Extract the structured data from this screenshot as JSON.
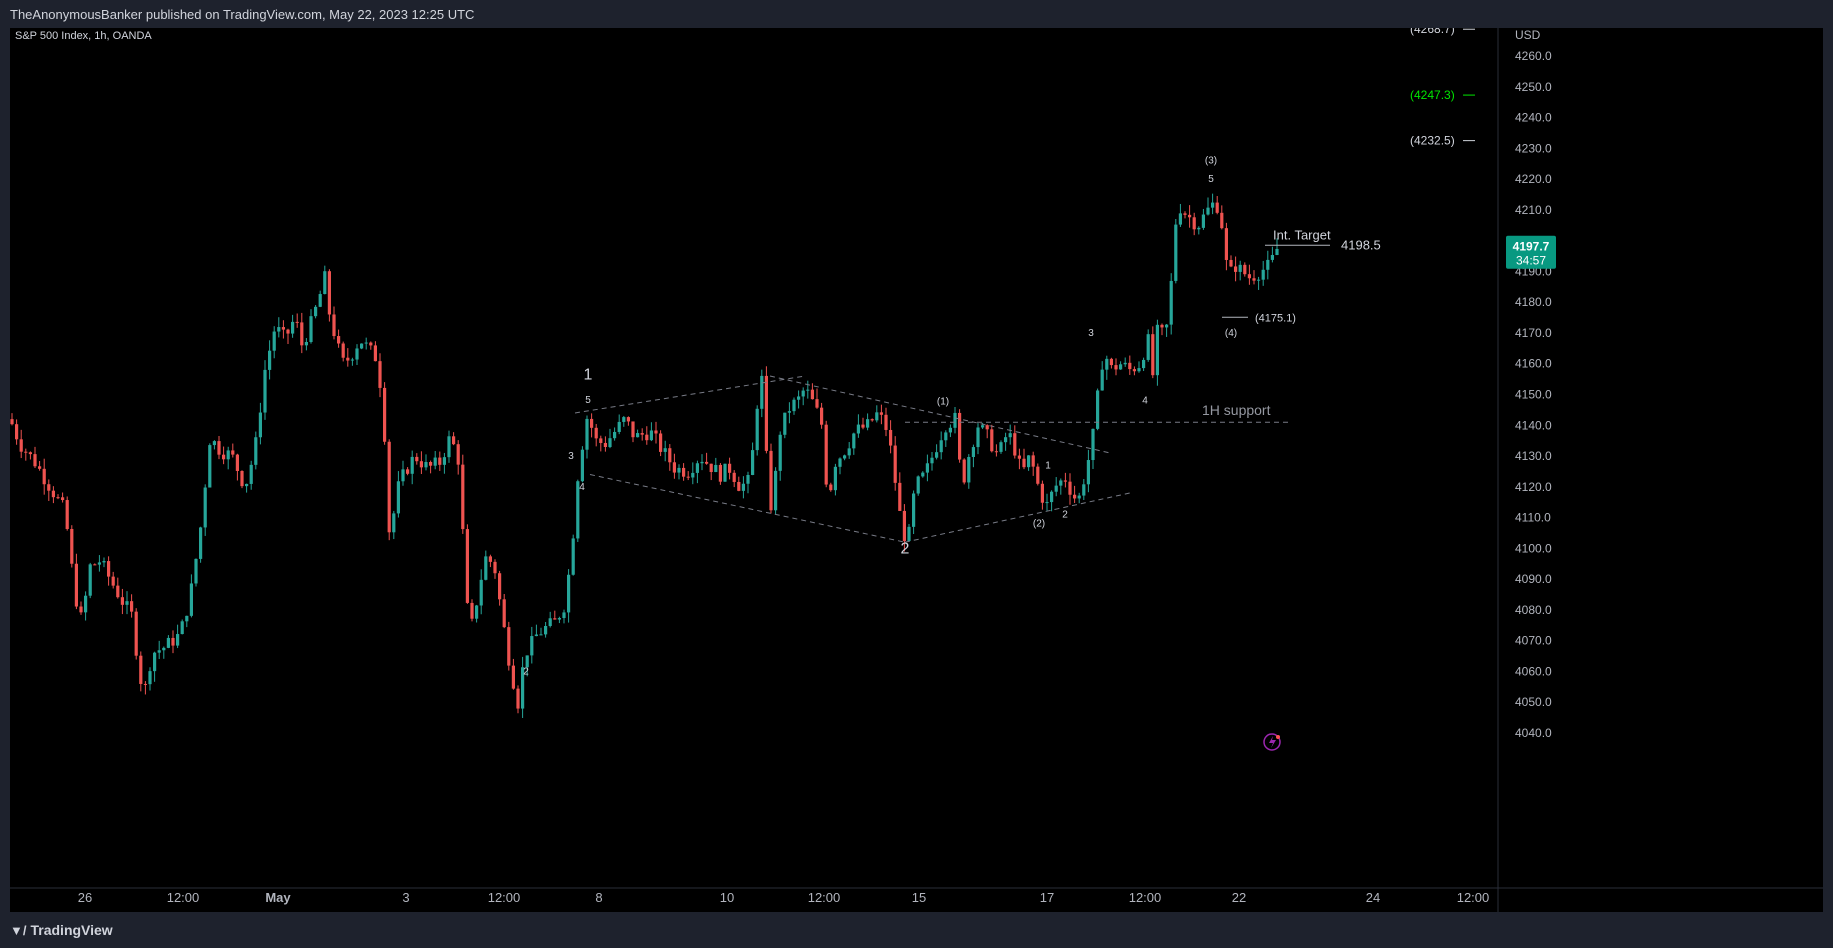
{
  "header": {
    "publisher_text": "TheAnonymousBanker published on TradingView.com, May 22, 2023 12:25 UTC"
  },
  "footer": {
    "brand": "TradingView",
    "brand_icon": "tradingview-logo-icon"
  },
  "colors": {
    "up": "#26a69a",
    "down": "#ef5350",
    "text": "#d1d4dc",
    "axis_text": "#b2b5be",
    "green_target": "#00e600",
    "last_price_bg": "#089981",
    "dashed": "#787b86"
  },
  "chart_data": {
    "type": "candlestick",
    "title": "S&P 500 Index, 1h, OANDA",
    "currency": "USD",
    "ylim": [
      4036,
      4274
    ],
    "y_ticks": [
      4260,
      4250,
      4240,
      4230,
      4220,
      4210,
      4200,
      4190,
      4180,
      4170,
      4160,
      4150,
      4140,
      4130,
      4120,
      4110,
      4100,
      4090,
      4080,
      4070,
      4060,
      4050,
      4040
    ],
    "x_tick_labels": [
      "26",
      "12:00",
      "May",
      "3",
      "12:00",
      "8",
      "10",
      "12:00",
      "15",
      "17",
      "12:00",
      "22",
      "24",
      "12:00"
    ],
    "last_price": "4197.7",
    "countdown": "34:57",
    "path": [
      [
        0,
        4142
      ],
      [
        10,
        4134
      ],
      [
        25,
        4128
      ],
      [
        40,
        4120
      ],
      [
        55,
        4112
      ],
      [
        65,
        4085
      ],
      [
        72,
        4076
      ],
      [
        80,
        4094
      ],
      [
        90,
        4096
      ],
      [
        100,
        4090
      ],
      [
        112,
        4083
      ],
      [
        122,
        4078
      ],
      [
        130,
        4058
      ],
      [
        135,
        4054
      ],
      [
        142,
        4066
      ],
      [
        155,
        4068
      ],
      [
        170,
        4072
      ],
      [
        180,
        4084
      ],
      [
        190,
        4105
      ],
      [
        200,
        4136
      ],
      [
        210,
        4132
      ],
      [
        222,
        4130
      ],
      [
        235,
        4120
      ],
      [
        245,
        4132
      ],
      [
        255,
        4158
      ],
      [
        265,
        4172
      ],
      [
        275,
        4168
      ],
      [
        285,
        4175
      ],
      [
        292,
        4166
      ],
      [
        300,
        4172
      ],
      [
        308,
        4180
      ],
      [
        315,
        4188
      ],
      [
        320,
        4175
      ],
      [
        326,
        4168
      ],
      [
        332,
        4160
      ],
      [
        340,
        4162
      ],
      [
        350,
        4168
      ],
      [
        358,
        4165
      ],
      [
        366,
        4162
      ],
      [
        372,
        4150
      ],
      [
        376,
        4130
      ],
      [
        380,
        4100
      ],
      [
        386,
        4118
      ],
      [
        395,
        4125
      ],
      [
        405,
        4130
      ],
      [
        418,
        4126
      ],
      [
        430,
        4128
      ],
      [
        440,
        4136
      ],
      [
        448,
        4130
      ],
      [
        452,
        4110
      ],
      [
        456,
        4085
      ],
      [
        460,
        4072
      ],
      [
        465,
        4080
      ],
      [
        475,
        4097
      ],
      [
        484,
        4095
      ],
      [
        492,
        4078
      ],
      [
        500,
        4062
      ],
      [
        508,
        4050
      ],
      [
        515,
        4066
      ],
      [
        520,
        4068
      ],
      [
        527,
        4072
      ],
      [
        535,
        4074
      ],
      [
        545,
        4076
      ],
      [
        555,
        4082
      ],
      [
        562,
        4100
      ],
      [
        567,
        4122
      ],
      [
        570,
        4128
      ],
      [
        574,
        4138
      ],
      [
        578,
        4144
      ],
      [
        585,
        4135
      ],
      [
        595,
        4134
      ],
      [
        605,
        4138
      ],
      [
        615,
        4142
      ],
      [
        625,
        4136
      ],
      [
        640,
        4138
      ],
      [
        652,
        4132
      ],
      [
        665,
        4126
      ],
      [
        678,
        4125
      ],
      [
        690,
        4130
      ],
      [
        700,
        4127
      ],
      [
        710,
        4124
      ],
      [
        720,
        4126
      ],
      [
        730,
        4120
      ],
      [
        740,
        4122
      ],
      [
        748,
        4150
      ],
      [
        752,
        4155
      ],
      [
        758,
        4120
      ],
      [
        762,
        4112
      ],
      [
        770,
        4138
      ],
      [
        780,
        4146
      ],
      [
        788,
        4148
      ],
      [
        795,
        4152
      ],
      [
        805,
        4146
      ],
      [
        812,
        4140
      ],
      [
        818,
        4115
      ],
      [
        825,
        4128
      ],
      [
        835,
        4132
      ],
      [
        845,
        4138
      ],
      [
        858,
        4140
      ],
      [
        868,
        4144
      ],
      [
        878,
        4138
      ],
      [
        886,
        4120
      ],
      [
        892,
        4106
      ],
      [
        898,
        4102
      ],
      [
        905,
        4120
      ],
      [
        915,
        4124
      ],
      [
        925,
        4132
      ],
      [
        935,
        4140
      ],
      [
        945,
        4142
      ],
      [
        952,
        4120
      ],
      [
        960,
        4132
      ],
      [
        968,
        4140
      ],
      [
        978,
        4136
      ],
      [
        988,
        4130
      ],
      [
        998,
        4138
      ],
      [
        1005,
        4132
      ],
      [
        1012,
        4124
      ],
      [
        1020,
        4130
      ],
      [
        1030,
        4118
      ],
      [
        1037,
        4114
      ],
      [
        1045,
        4120
      ],
      [
        1055,
        4123
      ],
      [
        1062,
        4118
      ],
      [
        1068,
        4115
      ],
      [
        1075,
        4124
      ],
      [
        1082,
        4134
      ],
      [
        1088,
        4150
      ],
      [
        1094,
        4165
      ],
      [
        1100,
        4158
      ],
      [
        1110,
        4160
      ],
      [
        1120,
        4158
      ],
      [
        1130,
        4160
      ],
      [
        1138,
        4168
      ],
      [
        1142,
        4154
      ],
      [
        1148,
        4172
      ],
      [
        1155,
        4168
      ],
      [
        1160,
        4180
      ],
      [
        1165,
        4205
      ],
      [
        1170,
        4211
      ],
      [
        1178,
        4208
      ],
      [
        1188,
        4205
      ],
      [
        1198,
        4210
      ],
      [
        1206,
        4213
      ],
      [
        1212,
        4205
      ],
      [
        1218,
        4188
      ],
      [
        1225,
        4192
      ],
      [
        1232,
        4190
      ],
      [
        1240,
        4188
      ],
      [
        1250,
        4190
      ],
      [
        1260,
        4192
      ],
      [
        1268,
        4198
      ]
    ],
    "annotations": {
      "wave_major": [
        "1",
        "2"
      ],
      "wave_minor_first": [
        "5",
        "3",
        "4",
        "2"
      ],
      "wave_minor_mid": [
        "(1)",
        "(2)",
        "1",
        "2"
      ],
      "wave_minor_last": [
        "3",
        "4",
        "5",
        "(3)",
        "(4)"
      ],
      "int_target_label": "Int. Target",
      "int_target_value": "4198.5",
      "support_label": "1H support",
      "level_4175": "(4175.1)",
      "levels_right": [
        {
          "label": "(4268.7)",
          "price": 4268.7,
          "color": "#d1d4dc"
        },
        {
          "label": "(4247.3)",
          "price": 4247.3,
          "color": "#00e600"
        },
        {
          "label": "(4232.5)",
          "price": 4232.5,
          "color": "#d1d4dc"
        }
      ]
    }
  }
}
